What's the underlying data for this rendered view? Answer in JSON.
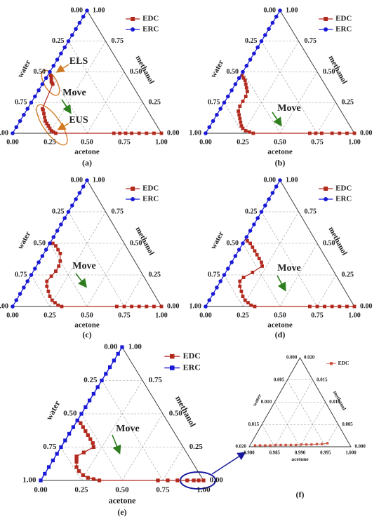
{
  "chart_data": [
    {
      "type": "ternary",
      "label": "(a)",
      "bottom_label": "acetone",
      "right_label": "methanol",
      "left_label": "water",
      "grid": true,
      "legend": "upper right",
      "xlim": [
        0,
        1
      ],
      "ylim": [
        0,
        1
      ],
      "zlim": [
        0,
        1
      ],
      "xticks": [
        {
          "value": 0,
          "label": "0.00"
        },
        0.25,
        {
          "value": 0.5,
          "label": "0.50"
        },
        0.75,
        {
          "value": 1,
          "label": "1.00"
        }
      ],
      "yticks": [
        {
          "value": 0,
          "label": "0.00"
        },
        0.25,
        {
          "value": 0.5,
          "label": "0.50"
        },
        0.75,
        {
          "value": 1,
          "label": "1.00"
        }
      ],
      "zticks": [
        {
          "value": 0,
          "label": "0.00"
        },
        0.25,
        {
          "value": 0.5,
          "label": "0.50"
        },
        0.75,
        {
          "value": 1,
          "label": "1.00"
        }
      ],
      "series": [
        {
          "name": "EDC",
          "color": "#b22a1e",
          "marker": "square",
          "x": [
            0.02,
            0.03,
            0.04,
            0.05,
            0.06,
            0.07,
            0.1,
            0.11,
            0.13,
            0.15,
            0.17,
            0.19,
            0.21,
            0.23,
            0.25,
            0.27,
            0.29,
            0.68,
            0.72,
            0.76,
            0.8,
            0.85,
            0.9,
            0.95,
            1.0
          ],
          "y": [
            0.47,
            0.46,
            0.44,
            0.42,
            0.41,
            0.4,
            0.2,
            0.19,
            0.16,
            0.13,
            0.1,
            0.08,
            0.06,
            0.04,
            0.02,
            0.01,
            0,
            0,
            0,
            0,
            0,
            0,
            0,
            0,
            0
          ]
        },
        {
          "name": "ERC",
          "color": "#1a1ad6",
          "marker": "circle",
          "x": [
            0,
            0,
            0,
            0,
            0,
            0,
            0,
            0,
            0,
            0,
            0,
            0,
            0,
            0,
            0,
            0,
            0,
            0,
            0,
            0,
            0
          ],
          "y": [
            0,
            0.05,
            0.1,
            0.15,
            0.2,
            0.25,
            0.3,
            0.35,
            0.4,
            0.45,
            0.5,
            0.55,
            0.6,
            0.65,
            0.7,
            0.75,
            0.8,
            0.85,
            0.9,
            0.95,
            1
          ]
        }
      ],
      "annotations": [
        {
          "text": "ELS",
          "color": "#d2781e"
        },
        {
          "text": "Move",
          "color": "#2e7d1e"
        },
        {
          "text": "EUS",
          "color": "#d2781e"
        }
      ]
    },
    {
      "type": "ternary",
      "label": "(b)",
      "bottom_label": "acetone",
      "right_label": "methanol",
      "left_label": "water",
      "grid": true,
      "legend": "upper right",
      "xlim": [
        0,
        1
      ],
      "ylim": [
        0,
        1
      ],
      "zlim": [
        0,
        1
      ],
      "xticks": [
        {
          "value": 0,
          "label": "0.00"
        },
        0.25,
        {
          "value": 0.5,
          "label": "0.50"
        },
        0.75,
        {
          "value": 1,
          "label": "1.00"
        }
      ],
      "yticks": [
        {
          "value": 0,
          "label": "0.00"
        },
        0.25,
        {
          "value": 0.5,
          "label": "0.50"
        },
        0.75,
        {
          "value": 1,
          "label": "1.00"
        }
      ],
      "zticks": [
        {
          "value": 0,
          "label": "0.00"
        },
        0.25,
        {
          "value": 0.5,
          "label": "0.50"
        },
        0.75,
        {
          "value": 1,
          "label": "1.00"
        }
      ],
      "series": [
        {
          "name": "EDC",
          "color": "#b22a1e",
          "marker": "square",
          "x": [
            0.01,
            0.03,
            0.05,
            0.07,
            0.09,
            0.11,
            0.12,
            0.12,
            0.12,
            0.13,
            0.15,
            0.17,
            0.19,
            0.21,
            0.23,
            0.26,
            0.29,
            0.32,
            0.7,
            0.74,
            0.78,
            0.85,
            0.9,
            0.95,
            1.0
          ],
          "y": [
            0.47,
            0.45,
            0.43,
            0.4,
            0.37,
            0.34,
            0.3,
            0.26,
            0.22,
            0.18,
            0.15,
            0.12,
            0.09,
            0.06,
            0.04,
            0.02,
            0.01,
            0,
            0,
            0,
            0,
            0,
            0,
            0,
            0
          ]
        },
        {
          "name": "ERC",
          "color": "#1a1ad6",
          "marker": "circle",
          "x": [
            0,
            0,
            0,
            0,
            0,
            0,
            0,
            0,
            0,
            0,
            0,
            0,
            0,
            0,
            0,
            0,
            0,
            0,
            0,
            0,
            0
          ],
          "y": [
            0,
            0.05,
            0.1,
            0.15,
            0.2,
            0.25,
            0.3,
            0.35,
            0.4,
            0.45,
            0.5,
            0.55,
            0.6,
            0.65,
            0.7,
            0.75,
            0.8,
            0.85,
            0.9,
            0.95,
            1
          ]
        }
      ],
      "annotations": [
        {
          "text": "Move",
          "color": "#2e7d1e"
        }
      ]
    },
    {
      "type": "ternary",
      "label": "(c)",
      "bottom_label": "acetone",
      "right_label": "methanol",
      "left_label": "water",
      "grid": true,
      "legend": "upper right",
      "xlim": [
        0,
        1
      ],
      "ylim": [
        0,
        1
      ],
      "zlim": [
        0,
        1
      ],
      "xticks": [
        {
          "value": 0,
          "label": "0.00"
        },
        0.25,
        {
          "value": 0.5,
          "label": "0.50"
        },
        0.75,
        {
          "value": 1,
          "label": "1.00"
        }
      ],
      "yticks": [
        {
          "value": 0,
          "label": "0.00"
        },
        0.25,
        {
          "value": 0.5,
          "label": "0.50"
        },
        0.75,
        {
          "value": 1,
          "label": "1.00"
        }
      ],
      "zticks": [
        {
          "value": 0,
          "label": "0.00"
        },
        0.25,
        {
          "value": 0.5,
          "label": "0.50"
        },
        0.75,
        {
          "value": 1,
          "label": "1.00"
        }
      ],
      "series": [
        {
          "name": "EDC",
          "color": "#b22a1e",
          "marker": "square",
          "x": [
            0.02,
            0.05,
            0.08,
            0.11,
            0.14,
            0.15,
            0.15,
            0.14,
            0.13,
            0.15,
            0.18,
            0.21,
            0.24,
            0.27,
            0.3,
            0.33,
            0.7,
            0.75,
            0.8,
            0.85,
            0.9,
            0.95,
            1.0
          ],
          "y": [
            0.5,
            0.48,
            0.45,
            0.42,
            0.36,
            0.32,
            0.28,
            0.24,
            0.2,
            0.16,
            0.12,
            0.08,
            0.05,
            0.03,
            0.01,
            0,
            0,
            0,
            0,
            0,
            0,
            0,
            0
          ]
        },
        {
          "name": "ERC",
          "color": "#1a1ad6",
          "marker": "circle",
          "x": [
            0,
            0,
            0,
            0,
            0,
            0,
            0,
            0,
            0,
            0,
            0,
            0,
            0,
            0,
            0,
            0,
            0,
            0,
            0,
            0,
            0
          ],
          "y": [
            0,
            0.05,
            0.1,
            0.15,
            0.2,
            0.25,
            0.3,
            0.35,
            0.4,
            0.45,
            0.5,
            0.55,
            0.6,
            0.65,
            0.7,
            0.75,
            0.8,
            0.85,
            0.9,
            0.95,
            1
          ]
        }
      ],
      "annotations": [
        {
          "text": "Move",
          "color": "#2e7d1e"
        }
      ]
    },
    {
      "type": "ternary",
      "label": "(d)",
      "bottom_label": "acetone",
      "right_label": "methanol",
      "left_label": "water",
      "grid": true,
      "legend": "upper right",
      "xlim": [
        0,
        1
      ],
      "ylim": [
        0,
        1
      ],
      "zlim": [
        0,
        1
      ],
      "xticks": [
        {
          "value": 0,
          "label": "0.00"
        },
        0.25,
        {
          "value": 0.5,
          "label": "0.50"
        },
        0.75,
        {
          "value": 1,
          "label": "1.00"
        }
      ],
      "yticks": [
        {
          "value": 0,
          "label": "0.00"
        },
        0.25,
        {
          "value": 0.5,
          "label": "0.50"
        },
        0.75,
        {
          "value": 1,
          "label": "1.00"
        }
      ],
      "zticks": [
        {
          "value": 0,
          "label": "0.00"
        },
        0.25,
        {
          "value": 0.5,
          "label": "0.50"
        },
        0.75,
        {
          "value": 1,
          "label": "1.00"
        }
      ],
      "series": [
        {
          "name": "EDC",
          "color": "#b22a1e",
          "marker": "square",
          "x": [
            0.02,
            0.05,
            0.08,
            0.11,
            0.14,
            0.17,
            0.2,
            0.22,
            0.18,
            0.14,
            0.13,
            0.15,
            0.18,
            0.21,
            0.24,
            0.27,
            0.3,
            0.33,
            0.7,
            0.75,
            0.8,
            0.85,
            0.9,
            0.95,
            1.0
          ],
          "y": [
            0.52,
            0.5,
            0.47,
            0.44,
            0.41,
            0.38,
            0.35,
            0.32,
            0.27,
            0.23,
            0.2,
            0.16,
            0.12,
            0.08,
            0.05,
            0.03,
            0.01,
            0,
            0,
            0,
            0,
            0,
            0,
            0,
            0
          ]
        },
        {
          "name": "ERC",
          "color": "#1a1ad6",
          "marker": "circle",
          "x": [
            0,
            0,
            0,
            0,
            0,
            0,
            0,
            0,
            0,
            0,
            0,
            0,
            0,
            0,
            0,
            0,
            0,
            0,
            0,
            0,
            0
          ],
          "y": [
            0,
            0.05,
            0.1,
            0.15,
            0.2,
            0.25,
            0.3,
            0.35,
            0.4,
            0.45,
            0.5,
            0.55,
            0.6,
            0.65,
            0.7,
            0.75,
            0.8,
            0.85,
            0.9,
            0.95,
            1
          ]
        }
      ],
      "annotations": [
        {
          "text": "Move",
          "color": "#2e7d1e"
        }
      ]
    },
    {
      "type": "ternary",
      "label": "(e)",
      "bottom_label": "acetone",
      "right_label": "methanol",
      "left_label": "water",
      "grid": true,
      "legend": "upper right",
      "xlim": [
        0,
        1
      ],
      "ylim": [
        0,
        1
      ],
      "zlim": [
        0,
        1
      ],
      "xticks": [
        {
          "value": 0,
          "label": "0.00"
        },
        0.25,
        {
          "value": 0.5,
          "label": "0.50"
        },
        0.75,
        {
          "value": 1,
          "label": "1.00"
        }
      ],
      "yticks": [
        {
          "value": 0,
          "label": "0.00"
        },
        0.25,
        {
          "value": 0.5,
          "label": "0.50"
        },
        0.75,
        {
          "value": 1,
          "label": "1.00"
        }
      ],
      "zticks": [
        {
          "value": 0,
          "label": "0.00"
        },
        0.25,
        {
          "value": 0.5,
          "label": "0.50"
        },
        0.75,
        {
          "value": 1,
          "label": "1.00"
        }
      ],
      "series": [
        {
          "name": "EDC",
          "color": "#b22a1e",
          "marker": "square",
          "x": [
            0.0,
            0.03,
            0.06,
            0.09,
            0.12,
            0.15,
            0.18,
            0.2,
            0.16,
            0.13,
            0.14,
            0.15,
            0.17,
            0.2,
            0.24,
            0.28,
            0.32,
            0.36,
            0.72,
            0.78,
            0.84,
            0.9,
            0.94,
            0.97,
            1.0
          ],
          "y": [
            0.45,
            0.43,
            0.4,
            0.37,
            0.34,
            0.31,
            0.28,
            0.25,
            0.21,
            0.18,
            0.16,
            0.14,
            0.1,
            0.07,
            0.04,
            0.02,
            0.01,
            0,
            0,
            0,
            0,
            0,
            0,
            0,
            0
          ]
        },
        {
          "name": "ERC",
          "color": "#1a1ad6",
          "marker": "square",
          "x": [
            0,
            0,
            0,
            0,
            0,
            0,
            0,
            0,
            0,
            0,
            0,
            0,
            0,
            0,
            0,
            0,
            0,
            0,
            0,
            0,
            0
          ],
          "y": [
            0,
            0.05,
            0.1,
            0.15,
            0.2,
            0.25,
            0.3,
            0.35,
            0.4,
            0.45,
            0.5,
            0.55,
            0.6,
            0.65,
            0.7,
            0.75,
            0.8,
            0.85,
            0.9,
            0.95,
            1
          ]
        }
      ],
      "annotations": [
        {
          "text": "Move",
          "color": "#2e7d1e"
        }
      ]
    },
    {
      "type": "ternary",
      "label": "(f)",
      "bottom_label": "acetone",
      "right_label": "methanol",
      "left_label": "water",
      "grid": true,
      "legend": "upper right",
      "xlim": [
        0.98,
        1
      ],
      "ylim": [
        0,
        0.02
      ],
      "zlim": [
        0,
        0.02
      ],
      "xticks": [
        {
          "value": 0.98,
          "label": "0.980"
        },
        0.985,
        {
          "value": 0.99,
          "label": "0.990"
        },
        0.995,
        {
          "value": 1,
          "label": "1.000"
        }
      ],
      "yticks": [
        {
          "value": 0,
          "label": "0.000"
        },
        0.005,
        {
          "value": 0.01,
          "label": "0.010"
        },
        0.015,
        {
          "value": 0.02,
          "label": "0.020"
        }
      ],
      "zticks": [
        {
          "value": 0,
          "label": "0.000"
        },
        0.005,
        {
          "value": 0.01,
          "label": "0.010"
        },
        0.015,
        {
          "value": 0.02,
          "label": "0.020"
        }
      ],
      "series": [
        {
          "name": "EDC",
          "color": "#c8503c",
          "marker": "square",
          "x": [
            0.981,
            0.982,
            0.983,
            0.984,
            0.985,
            0.986,
            0.987,
            0.988,
            0.989,
            0.99,
            0.991,
            0.992,
            0.993,
            0.994,
            0.995
          ],
          "y": [
            0.0003,
            0.0003,
            0.0003,
            0.0003,
            0.0004,
            0.0004,
            0.0004,
            0.0004,
            0.0004,
            0.0005,
            0.0005,
            0.0005,
            0.0006,
            0.0006,
            0.0008
          ]
        }
      ],
      "annotations": []
    }
  ]
}
